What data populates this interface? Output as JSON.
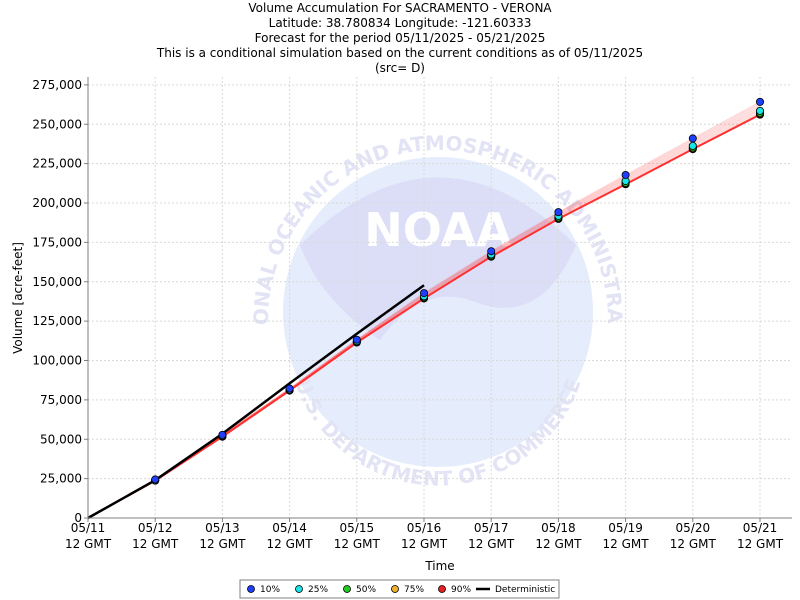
{
  "header": {
    "line1": "Volume Accumulation For SACRAMENTO - VERONA",
    "line2": "Latitude: 38.780834 Longitude: -121.60333",
    "line3": "Forecast for the period 05/11/2025 - 05/21/2025",
    "line4": "This is a conditional simulation based on the current conditions as of 05/11/2025",
    "line5": "(src= D)"
  },
  "watermark": {
    "logo_text": "NOAA",
    "ring_top": "NATIONAL OCEANIC AND ATMOSPHERIC ADMINISTRATION",
    "ring_bottom": "U.S. DEPARTMENT OF COMMERCE"
  },
  "colors": {
    "p10": "#1f3fff",
    "p25": "#19e6e6",
    "p50": "#22cc22",
    "p75": "#f0b030",
    "p90": "#e82020",
    "deterministic": "#000000",
    "trace": "#ff3030",
    "grid": "#d9d9d9"
  },
  "chart_data": {
    "type": "line",
    "xlabel": "Time",
    "ylabel": "Volume [acre-feet]",
    "x_ticks": [
      {
        "date": "05/11",
        "time": "12 GMT"
      },
      {
        "date": "05/12",
        "time": "12 GMT"
      },
      {
        "date": "05/13",
        "time": "12 GMT"
      },
      {
        "date": "05/14",
        "time": "12 GMT"
      },
      {
        "date": "05/15",
        "time": "12 GMT"
      },
      {
        "date": "05/16",
        "time": "12 GMT"
      },
      {
        "date": "05/17",
        "time": "12 GMT"
      },
      {
        "date": "05/18",
        "time": "12 GMT"
      },
      {
        "date": "05/19",
        "time": "12 GMT"
      },
      {
        "date": "05/20",
        "time": "12 GMT"
      },
      {
        "date": "05/21",
        "time": "12 GMT"
      }
    ],
    "ylim": [
      0,
      280000
    ],
    "y_ticks": [
      0,
      25000,
      50000,
      75000,
      100000,
      125000,
      150000,
      175000,
      200000,
      225000,
      250000,
      275000
    ],
    "y_tick_labels": [
      "0",
      "25,000",
      "50,000",
      "75,000",
      "100,000",
      "125,000",
      "150,000",
      "175,000",
      "200,000",
      "225,000",
      "250,000",
      "275,000"
    ],
    "grid": true,
    "legend_position": "bottom",
    "series": [
      {
        "name": "10%",
        "color_key": "p10",
        "marker": "circle",
        "values": [
          0,
          24500,
          52800,
          82200,
          113200,
          142800,
          169400,
          194200,
          217800,
          241000,
          264200
        ]
      },
      {
        "name": "25%",
        "color_key": "p25",
        "marker": "circle",
        "values": [
          0,
          24000,
          52200,
          81500,
          112300,
          140800,
          167400,
          191800,
          214000,
          236300,
          258500
        ]
      },
      {
        "name": "50%",
        "color_key": "p50",
        "marker": "circle",
        "values": [
          0,
          23900,
          52000,
          81300,
          112000,
          140200,
          166700,
          190800,
          212800,
          235200,
          257200
        ]
      },
      {
        "name": "75%",
        "color_key": "p75",
        "marker": "circle",
        "values": [
          0,
          23800,
          51800,
          81100,
          111700,
          139700,
          166200,
          190300,
          212300,
          234600,
          256600
        ]
      },
      {
        "name": "90%",
        "color_key": "p90",
        "marker": "circle",
        "values": [
          0,
          23700,
          51600,
          80900,
          111400,
          139400,
          165900,
          189900,
          211900,
          234200,
          256100
        ]
      },
      {
        "name": "Deterministic",
        "color_key": "deterministic",
        "marker": "line",
        "values": [
          0,
          24000,
          53500,
          85500,
          117000,
          147800,
          null,
          null,
          null,
          null,
          null
        ]
      }
    ]
  }
}
